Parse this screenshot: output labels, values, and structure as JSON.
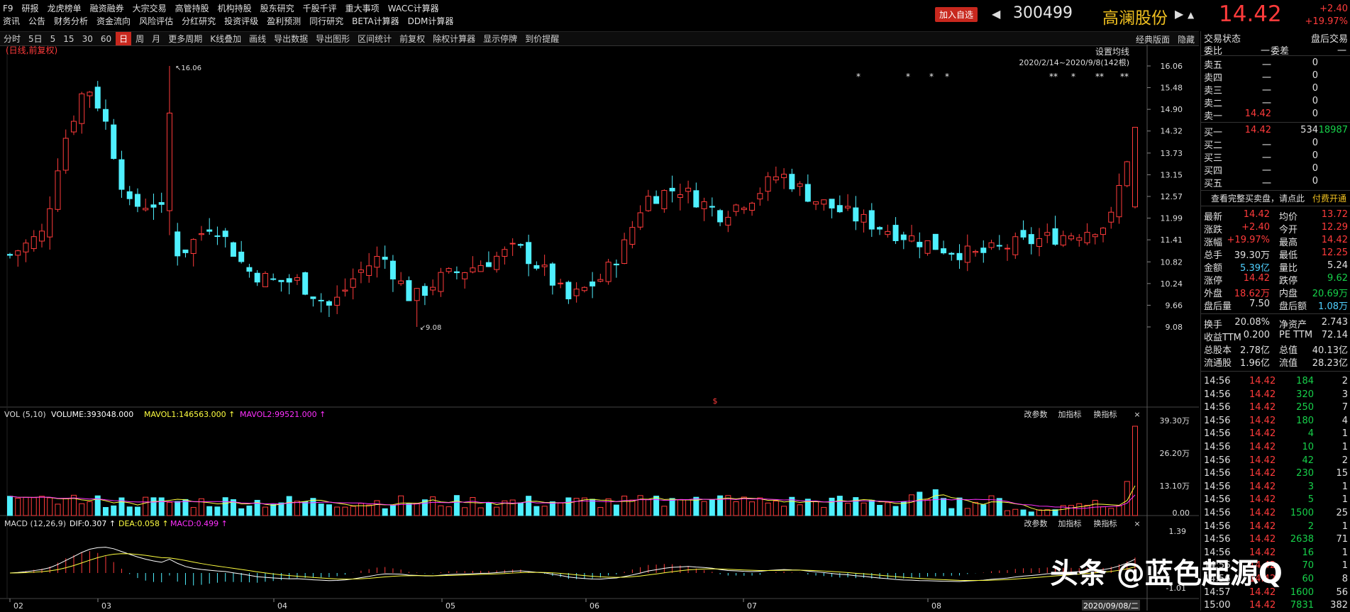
{
  "top_menu": {
    "row1": [
      "F9",
      "研报",
      "龙虎榜单",
      "融资融券",
      "大宗交易",
      "高管持股",
      "机构持股",
      "股东研究",
      "千股千评",
      "重大事项",
      "WACC计算器"
    ],
    "row2": [
      "资讯",
      "公告",
      "财务分析",
      "资金流向",
      "风险评估",
      "分红研究",
      "投资评级",
      "盈利预测",
      "同行研究",
      "BETA计算器",
      "DDM计算器"
    ]
  },
  "stock": {
    "add_fav": "加入自选",
    "code": "300499",
    "name": "高澜股份",
    "price": "14.42",
    "change": "+2.40",
    "change_pct": "+19.97%"
  },
  "toolbar": {
    "items": [
      "分时",
      "5日",
      "5",
      "15",
      "30",
      "60",
      "日",
      "周",
      "月",
      "更多周期",
      "K线叠加",
      "画线",
      "导出数据",
      "导出图形",
      "区间统计",
      "前复权",
      "除权计算器",
      "显示停牌",
      "到价提醒"
    ],
    "selected": "日",
    "right": [
      "经典版面",
      "隐藏"
    ]
  },
  "kline": {
    "label": "(日线,前复权)",
    "ma_setting": "设置均线",
    "range": "2020/2/14~2020/9/8(142根)",
    "high_label": "16.06",
    "low_label": "9.08",
    "ticks": [
      "16.06",
      "15.48",
      "14.90",
      "14.32",
      "13.73",
      "13.15",
      "12.57",
      "11.99",
      "11.41",
      "10.82",
      "10.24",
      "9.66",
      "9.08"
    ],
    "marker": "$",
    "stars": [
      "*",
      "*",
      "*",
      "*",
      "**",
      "*",
      "**",
      "**"
    ]
  },
  "vol": {
    "title": "VOL (5,10)",
    "vol": "VOLUME:393048.000",
    "mavol1": "MAVOL1:146563.000",
    "mavol2": "MAVOL2:99521.000",
    "ticks": [
      "39.30万",
      "26.20万",
      "13.10万",
      "0.00"
    ]
  },
  "macd": {
    "title": "MACD (12,26,9)",
    "dif": "DIF:0.307",
    "dea": "DEA:0.058",
    "macd": "MACD:0.499",
    "ticks": [
      "1.39",
      "-1.01"
    ]
  },
  "panel_buttons": [
    "改参数",
    "加指标",
    "换指标",
    "×"
  ],
  "xaxis": [
    "02",
    "03",
    "04",
    "05",
    "06",
    "07",
    "08"
  ],
  "cursor_date": "2020/09/08/二",
  "chart_data": {
    "type": "candlestick",
    "price_range": [
      9.08,
      16.06
    ],
    "candles": [],
    "note_series": [
      "K",
      "VOL",
      "MACD"
    ]
  },
  "right_panel": {
    "header": [
      "交易状态",
      "盘后交易"
    ],
    "weibi": [
      "委比",
      "一",
      "委差",
      "一"
    ],
    "asks": [
      [
        "卖五",
        "一",
        "0"
      ],
      [
        "卖四",
        "一",
        "0"
      ],
      [
        "卖三",
        "一",
        "0"
      ],
      [
        "卖二",
        "一",
        "0"
      ],
      [
        "卖一",
        "14.42",
        "0"
      ]
    ],
    "bids": [
      [
        "买一",
        "14.42",
        "534",
        "18987"
      ],
      [
        "买二",
        "一",
        "0"
      ],
      [
        "买三",
        "一",
        "0"
      ],
      [
        "买四",
        "一",
        "0"
      ],
      [
        "买五",
        "一",
        "0"
      ]
    ],
    "promo": [
      "查看完整买卖盘，请点此",
      "付费开通"
    ],
    "stats": [
      [
        "最新",
        "14.42",
        "均价",
        "13.72"
      ],
      [
        "涨跌",
        "+2.40",
        "今开",
        "12.29"
      ],
      [
        "涨幅",
        "+19.97%",
        "最高",
        "14.42"
      ],
      [
        "总手",
        "39.30万",
        "最低",
        "12.25"
      ],
      [
        "金额",
        "5.39亿",
        "量比",
        "5.24"
      ],
      [
        "涨停",
        "14.42",
        "跌停",
        "9.62"
      ],
      [
        "外盘",
        "18.62万",
        "内盘",
        "20.69万"
      ],
      [
        "盘后量",
        "7.50",
        "盘后额",
        "1.08万"
      ]
    ],
    "fin": [
      [
        "换手",
        "20.08%",
        "净资产",
        "2.743"
      ],
      [
        "收益TTM",
        "0.200",
        "PE TTM",
        "72.14"
      ],
      [
        "总股本",
        "2.78亿",
        "总值",
        "40.13亿"
      ],
      [
        "流通股",
        "1.96亿",
        "流值",
        "28.23亿"
      ]
    ],
    "ticks": [
      [
        "14:56",
        "14.42",
        "184",
        "2"
      ],
      [
        "14:56",
        "14.42",
        "320",
        "3"
      ],
      [
        "14:56",
        "14.42",
        "250",
        "7"
      ],
      [
        "14:56",
        "14.42",
        "180",
        "4"
      ],
      [
        "14:56",
        "14.42",
        "4",
        "1"
      ],
      [
        "14:56",
        "14.42",
        "10",
        "1"
      ],
      [
        "14:56",
        "14.42",
        "42",
        "2"
      ],
      [
        "14:56",
        "14.42",
        "230",
        "15"
      ],
      [
        "14:56",
        "14.42",
        "3",
        "1"
      ],
      [
        "14:56",
        "14.42",
        "5",
        "1"
      ],
      [
        "14:56",
        "14.42",
        "1500",
        "25"
      ],
      [
        "14:56",
        "14.42",
        "2",
        "1"
      ],
      [
        "14:56",
        "14.42",
        "2638",
        "71"
      ],
      [
        "14:56",
        "14.42",
        "16",
        "1"
      ],
      [
        "14:56",
        "14.42",
        "70",
        "1"
      ],
      [
        "14:56",
        "14.42",
        "60",
        "8"
      ],
      [
        "14:57",
        "14.42",
        "1600",
        "56"
      ],
      [
        "15:00",
        "14.42",
        "7831",
        "382"
      ]
    ]
  },
  "watermark": "头条 @蓝色起源Q"
}
